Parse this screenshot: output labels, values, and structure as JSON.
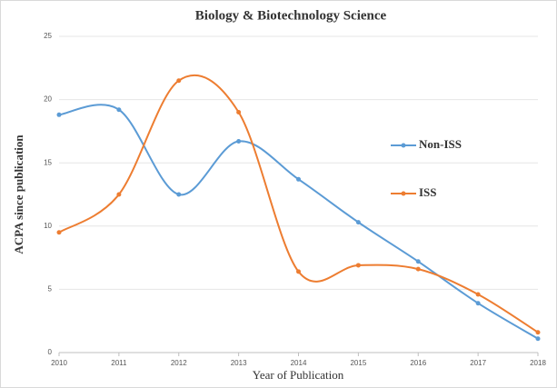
{
  "chart_data": {
    "type": "line",
    "title": "Biology & Biotechnology Science",
    "xlabel": "Year of Publication",
    "ylabel": "ACPA since publication",
    "x": [
      2010,
      2011,
      2012,
      2013,
      2014,
      2015,
      2016,
      2017,
      2018
    ],
    "xlim": [
      2010,
      2018
    ],
    "xticks": [
      2010,
      2011,
      2012,
      2013,
      2014,
      2015,
      2016,
      2017,
      2018
    ],
    "ylim": [
      0,
      25
    ],
    "yticks": [
      0,
      5,
      10,
      15,
      20,
      25
    ],
    "grid": true,
    "smooth": true,
    "legend": "right",
    "series": [
      {
        "name": "Non-ISS",
        "color": "#5b9bd5",
        "values": [
          18.8,
          19.2,
          12.5,
          16.7,
          13.7,
          10.3,
          7.2,
          3.9,
          1.1
        ]
      },
      {
        "name": "ISS",
        "color": "#ed7d31",
        "values": [
          9.5,
          12.5,
          21.5,
          19.0,
          6.4,
          6.9,
          6.6,
          4.6,
          1.6
        ]
      }
    ]
  }
}
